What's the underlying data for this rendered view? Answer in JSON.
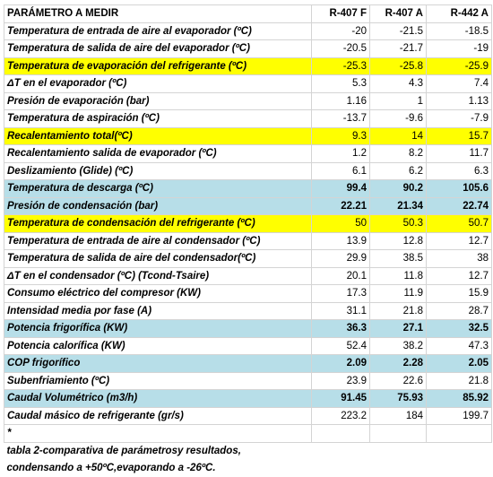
{
  "table": {
    "header": [
      "PARÁMETRO A MEDIR",
      "R-407 F",
      "R-407 A",
      "R-442 A"
    ],
    "rows": [
      {
        "label": "Temperatura de entrada de aire al evaporador (ºC)",
        "values": [
          -20,
          -21.5,
          -18.5
        ]
      },
      {
        "label": "Temperatura de salida de aire del evaporador (ºC)",
        "values": [
          -20.5,
          -21.7,
          -19
        ]
      },
      {
        "label": "Temperatura de evaporación del refrigerante (ºC)",
        "values": [
          -25.3,
          -25.8,
          -25.9
        ],
        "color": "#ffff00"
      },
      {
        "label": "ΔT en el evaporador (ºC)",
        "values": [
          5.3,
          4.3,
          7.4
        ]
      },
      {
        "label": "Presión de evaporación (bar)",
        "values": [
          1.16,
          1,
          1.13
        ]
      },
      {
        "label": "Temperatura de aspiración  (ºC)",
        "values": [
          -13.7,
          -9.6,
          -7.9
        ]
      },
      {
        "label": "Recalentamiento total(ºC)",
        "values": [
          9.3,
          14,
          15.7
        ],
        "color": "#ffff00"
      },
      {
        "label": "Recalentamiento salida de evaporador (ºC)",
        "values": [
          1.2,
          8.2,
          11.7
        ]
      },
      {
        "label": "Deslizamiento (Glide) (ºC)",
        "values": [
          6.1,
          6.2,
          6.3
        ]
      },
      {
        "label": "Temperatura de descarga (ºC)",
        "values": [
          99.4,
          90.2,
          105.6
        ],
        "color": "#b7dee8",
        "bold": true
      },
      {
        "label": "Presión de condensación (bar)",
        "values": [
          22.21,
          21.34,
          22.74
        ],
        "color": "#b7dee8",
        "bold": true
      },
      {
        "label": "Temperatura de condensación del refrigerante (ºC)",
        "values": [
          50,
          50.3,
          50.7
        ],
        "color": "#ffff00"
      },
      {
        "label": "Temperatura de entrada de aire al condensador (ºC)",
        "values": [
          13.9,
          12.8,
          12.7
        ]
      },
      {
        "label": "Temperatura de salida de aire del condensador(ºC)",
        "values": [
          29.9,
          38.5,
          38
        ]
      },
      {
        "label": "ΔT en el condensador (ºC) (Tcond-Tsaire)",
        "values": [
          20.1,
          11.8,
          12.7
        ]
      },
      {
        "label": "Consumo eléctrico del compresor (KW)",
        "values": [
          17.3,
          11.9,
          15.9
        ]
      },
      {
        "label": "Intensidad media por fase (A)",
        "values": [
          31.1,
          21.8,
          28.7
        ]
      },
      {
        "label": "Potencia frigorífica (KW)",
        "values": [
          36.3,
          27.1,
          32.5
        ],
        "color": "#b7dee8",
        "bold": true
      },
      {
        "label": "Potencia calorífica (KW)",
        "values": [
          52.4,
          38.2,
          47.3
        ]
      },
      {
        "label": "COP frigorífico",
        "values": [
          2.09,
          2.28,
          2.05
        ],
        "color": "#b7dee8",
        "bold": true
      },
      {
        "label": "Subenfriamiento (ºC)",
        "values": [
          23.9,
          22.6,
          21.8
        ]
      },
      {
        "label": "Caudal Volumétrico (m3/h)",
        "values": [
          91.45,
          75.93,
          85.92
        ],
        "color": "#b7dee8",
        "bold": true
      },
      {
        "label": "Caudal másico de refrigerante (gr/s)",
        "values": [
          223.2,
          184,
          199.7
        ]
      }
    ],
    "note": "*",
    "caption": [
      "tabla 2-comparativa de parámetrosy resultados,",
      "condensando a +50ºC,evaporando a -26ºC."
    ]
  }
}
